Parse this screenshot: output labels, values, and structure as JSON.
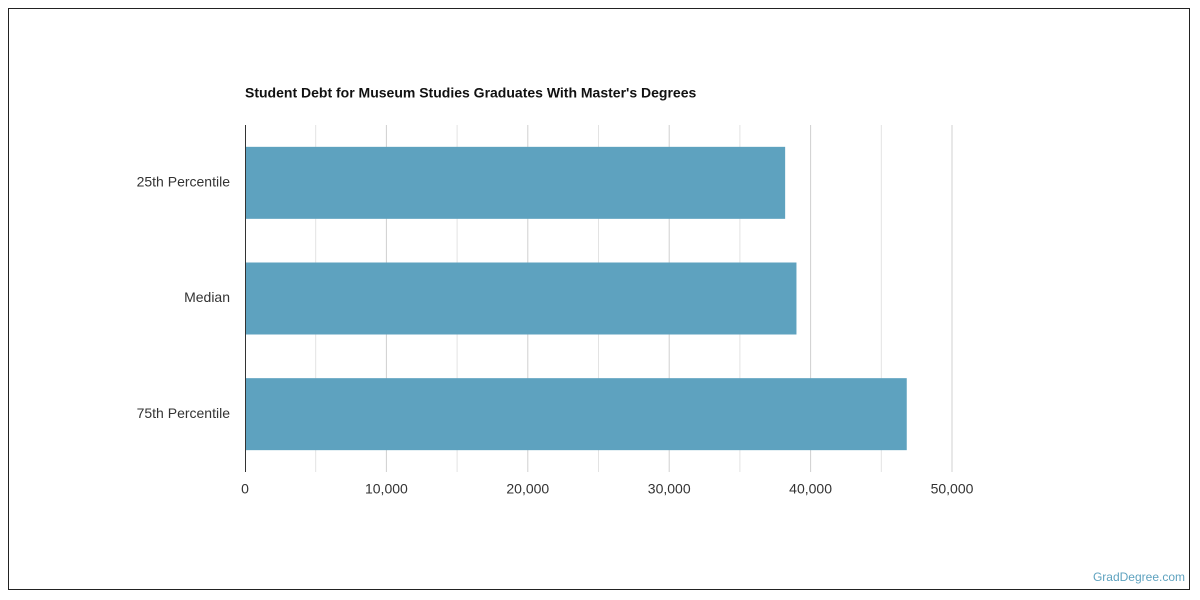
{
  "chart_data": {
    "type": "bar",
    "orientation": "horizontal",
    "title": "Student Debt for Museum Studies Graduates With Master's Degrees",
    "categories": [
      "25th Percentile",
      "Median",
      "75th Percentile"
    ],
    "values": [
      38200,
      39000,
      46800
    ],
    "color": "#5ea2bf",
    "xlim": [
      0,
      50000
    ],
    "xticks": [
      0,
      {
        "value": 10000,
        "label": "10,000"
      },
      {
        "value": 20000,
        "label": "20,000"
      },
      {
        "value": 30000,
        "label": "30,000"
      },
      {
        "value": 40000,
        "label": "40,000"
      },
      {
        "value": 50000,
        "label": "50,000"
      }
    ],
    "x_minor_ticks": [
      5000,
      15000,
      25000,
      35000,
      45000
    ],
    "grid": true,
    "source": "GradDegree.com"
  }
}
